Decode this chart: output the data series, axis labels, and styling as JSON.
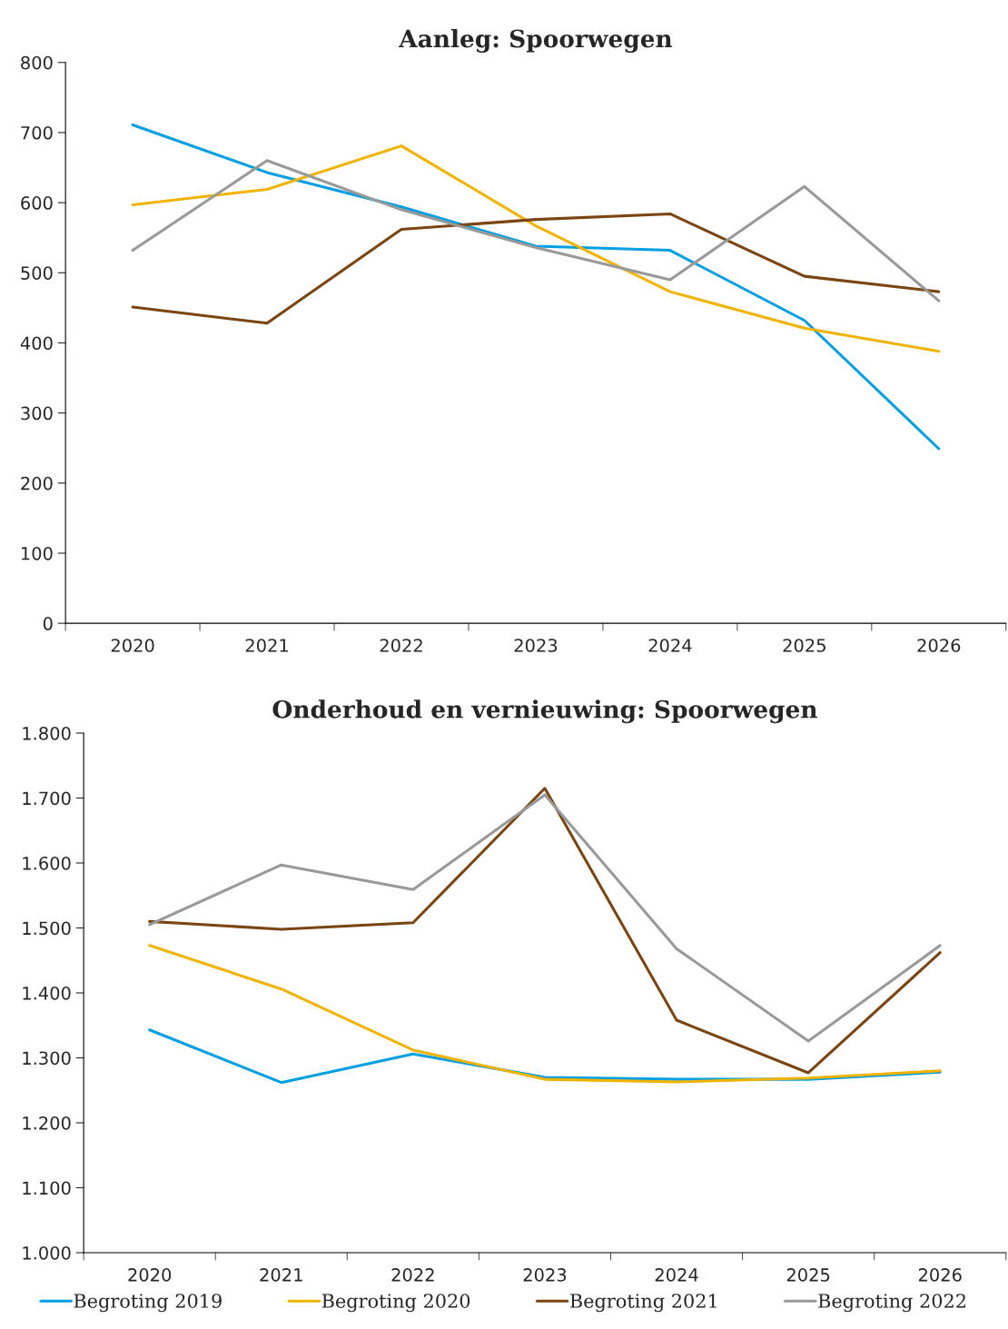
{
  "chart_data": [
    {
      "type": "line",
      "title": "Aanleg: Spoorwegen",
      "categories": [
        "2020",
        "2021",
        "2022",
        "2023",
        "2024",
        "2025",
        "2026"
      ],
      "series": [
        {
          "color": "#009fe3",
          "values": [
            711,
            643,
            594,
            538,
            532,
            432,
            249
          ]
        },
        {
          "color": "#f0b400",
          "values": [
            597,
            619,
            681,
            567,
            473,
            421,
            388
          ]
        },
        {
          "color": "#7a4510",
          "values": [
            451,
            428,
            562,
            576,
            584,
            495,
            473
          ]
        },
        {
          "color": "#999999",
          "values": [
            532,
            660,
            590,
            536,
            490,
            623,
            460
          ]
        }
      ],
      "ylim": [
        0,
        800
      ],
      "yticks": [
        0,
        100,
        200,
        300,
        400,
        500,
        600,
        700,
        800
      ],
      "grid": false,
      "legend": false
    },
    {
      "type": "line",
      "title": "Onderhoud en vernieuwing: Spoorwegen",
      "categories": [
        "2020",
        "2021",
        "2022",
        "2023",
        "2024",
        "2025",
        "2026"
      ],
      "series": [
        {
          "name": "Begroting 2019",
          "color": "#009fe3",
          "values": [
            1343,
            1262,
            1306,
            1270,
            1267,
            1267,
            1278
          ]
        },
        {
          "name": "Begroting 2020",
          "color": "#f0b400",
          "values": [
            1473,
            1406,
            1312,
            1267,
            1263,
            1269,
            1280
          ]
        },
        {
          "name": "Begroting 2021",
          "color": "#7a4510",
          "values": [
            1510,
            1498,
            1508,
            1715,
            1358,
            1277,
            1462
          ]
        },
        {
          "name": "Begroting 2022",
          "color": "#999999",
          "values": [
            1505,
            1597,
            1559,
            1705,
            1468,
            1326,
            1473
          ]
        }
      ],
      "ylim": [
        1000,
        1800
      ],
      "yticks": [
        {
          "value": 1000,
          "label": "1.000"
        },
        {
          "value": 1100,
          "label": "1.100"
        },
        {
          "value": 1200,
          "label": "1.200"
        },
        {
          "value": 1300,
          "label": "1.300"
        },
        {
          "value": 1400,
          "label": "1.400"
        },
        {
          "value": 1500,
          "label": "1.500"
        },
        {
          "value": 1600,
          "label": "1.600"
        },
        {
          "value": 1700,
          "label": "1.700"
        },
        {
          "value": 1800,
          "label": "1.800"
        }
      ],
      "grid": false,
      "legend": "bottom"
    }
  ]
}
